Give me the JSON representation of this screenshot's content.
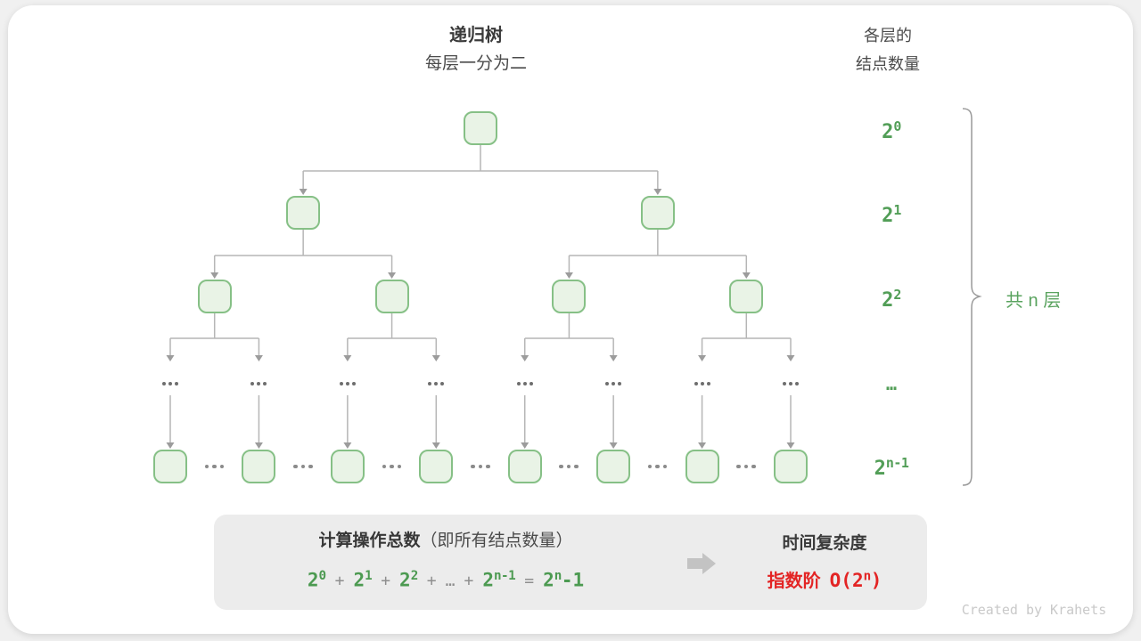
{
  "header": {
    "title": "递归树",
    "subtitle": "每层一分为二",
    "right_line1": "各层的",
    "right_line2": "结点数量"
  },
  "tree": {
    "levels": [
      {
        "type": "nodes",
        "count": 1,
        "label": {
          "base": "2",
          "sup": "0"
        }
      },
      {
        "type": "nodes",
        "count": 2,
        "label": {
          "base": "2",
          "sup": "1"
        }
      },
      {
        "type": "nodes",
        "count": 4,
        "label": {
          "base": "2",
          "sup": "2"
        }
      },
      {
        "type": "ellipsis",
        "count": 8,
        "label": {
          "text": "…"
        }
      },
      {
        "type": "nodes",
        "count": 8,
        "gap_ellipsis": true,
        "label": {
          "base": "2",
          "sup": "n-1"
        }
      }
    ],
    "brace_label": "共 n 层"
  },
  "summary": {
    "title_strong": "计算操作总数",
    "title_note": "（即所有结点数量）",
    "formula": [
      {
        "type": "term",
        "base": "2",
        "sup": "0"
      },
      {
        "type": "op",
        "text": "+"
      },
      {
        "type": "term",
        "base": "2",
        "sup": "1"
      },
      {
        "type": "op",
        "text": "+"
      },
      {
        "type": "term",
        "base": "2",
        "sup": "2"
      },
      {
        "type": "op",
        "text": "+"
      },
      {
        "type": "op",
        "text": "…"
      },
      {
        "type": "op",
        "text": "+"
      },
      {
        "type": "term",
        "base": "2",
        "sup": "n-1"
      },
      {
        "type": "op",
        "text": "="
      },
      {
        "type": "term",
        "base": "2",
        "sup": "n",
        "suffix": "-1"
      }
    ],
    "result_title": "时间复杂度",
    "result_prefix": "指数阶",
    "result_expr": {
      "pre": "O(2",
      "sup": "n",
      "post": ")"
    }
  },
  "credit": "Created by Krahets",
  "colors": {
    "node_border": "#86c086",
    "node_fill": "#e9f3e6",
    "green_text": "#529e57",
    "red_text": "#e32424",
    "connector": "#b6b6b6",
    "arrowhead": "#9c9c9c",
    "summary_bg": "#ececec",
    "big_arrow": "#c3c3c3"
  }
}
